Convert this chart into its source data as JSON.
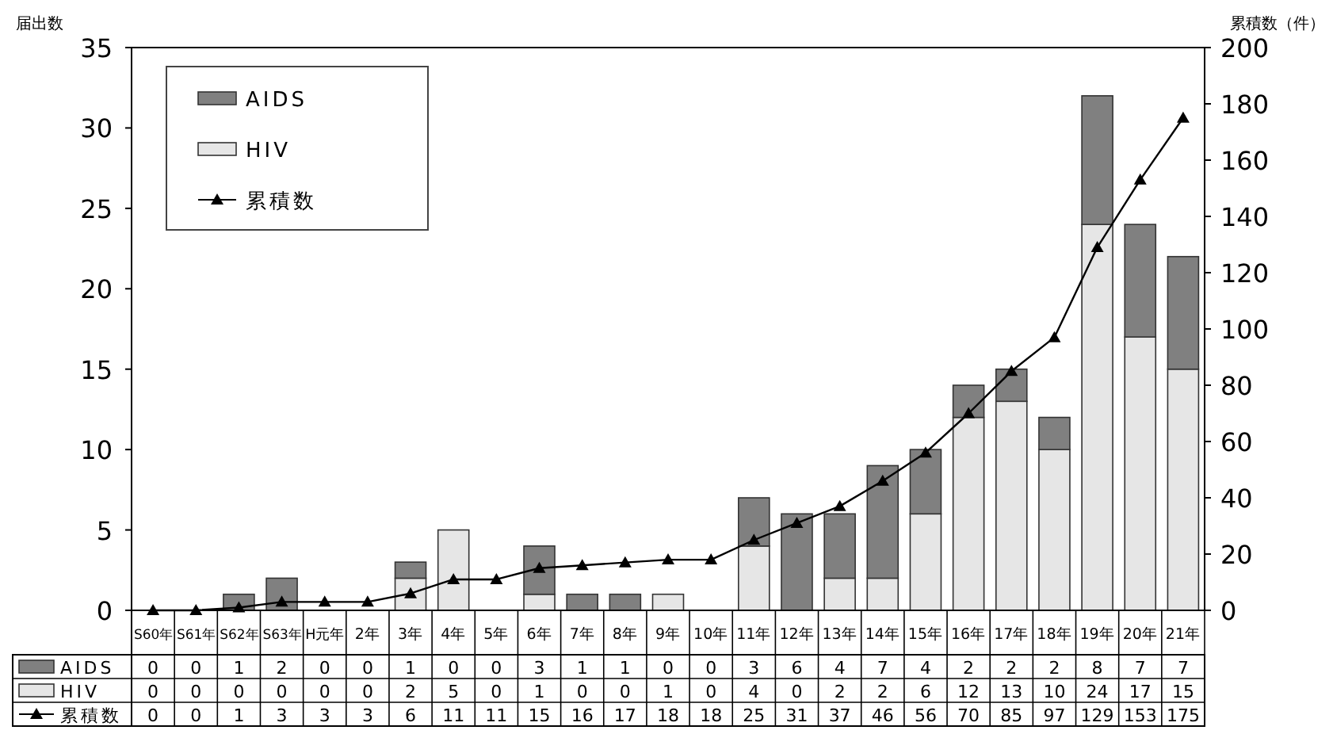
{
  "chart_data": {
    "type": "bar",
    "stacked": true,
    "ylabel": "届出数",
    "y2label": "累積数（件）",
    "categories": [
      "S60年",
      "S61年",
      "S62年",
      "S63年",
      "H元年",
      "2年",
      "3年",
      "4年",
      "5年",
      "6年",
      "7年",
      "8年",
      "9年",
      "10年",
      "11年",
      "12年",
      "13年",
      "14年",
      "15年",
      "16年",
      "17年",
      "18年",
      "19年",
      "20年",
      "21年"
    ],
    "series": [
      {
        "name": "HIV",
        "color": "#e6e6e6",
        "values": [
          0,
          0,
          0,
          0,
          0,
          0,
          2,
          5,
          0,
          1,
          0,
          0,
          1,
          0,
          4,
          0,
          2,
          2,
          6,
          12,
          13,
          10,
          24,
          17,
          15
        ]
      },
      {
        "name": "AIDS",
        "color": "#808080",
        "values": [
          0,
          0,
          1,
          2,
          0,
          0,
          1,
          0,
          0,
          3,
          1,
          1,
          0,
          0,
          3,
          6,
          4,
          7,
          4,
          2,
          2,
          2,
          8,
          7,
          7
        ]
      },
      {
        "name": "累積数",
        "type": "line",
        "axis": "y2",
        "color": "#000000",
        "values": [
          0,
          0,
          1,
          3,
          3,
          3,
          6,
          11,
          11,
          15,
          16,
          17,
          18,
          18,
          25,
          31,
          37,
          46,
          56,
          70,
          85,
          97,
          129,
          153,
          175
        ]
      }
    ],
    "ylim": [
      0,
      35
    ],
    "yticks": [
      0,
      5,
      10,
      15,
      20,
      25,
      30,
      35
    ],
    "y2lim": [
      0,
      200
    ],
    "y2ticks": [
      0,
      20,
      40,
      60,
      80,
      100,
      120,
      140,
      160,
      180,
      200
    ],
    "marker": "triangle",
    "legend": "top left",
    "data_labels": true
  }
}
